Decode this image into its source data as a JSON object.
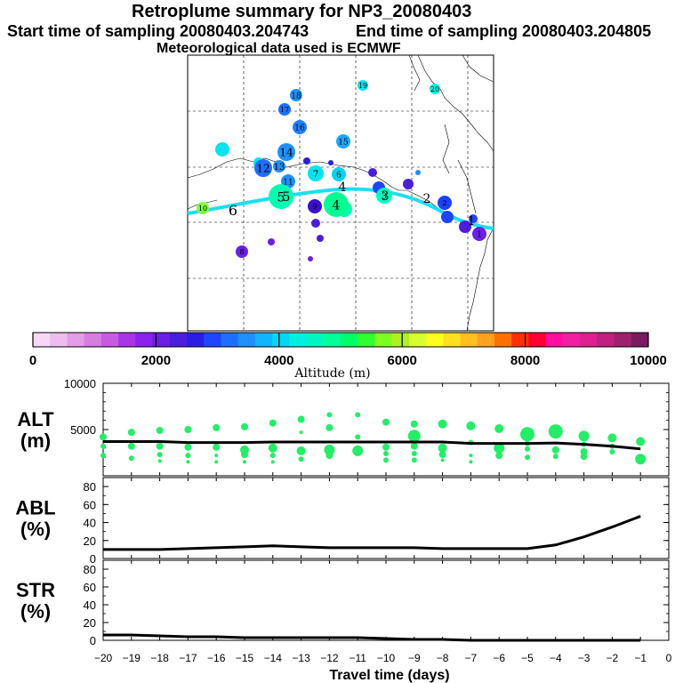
{
  "titles": {
    "main": "Retroplume summary for NP3_20080403",
    "start": "Start time of sampling 20080403.204743",
    "end": "End time of sampling 20080403.204805",
    "met": "Meteorological data used is ECMWF"
  },
  "map": {
    "description_labels": [
      "1",
      "2",
      "3",
      "4",
      "5",
      "6",
      "7",
      "8",
      "9",
      "10",
      "11",
      "12",
      "13",
      "14",
      "15",
      "16",
      "17",
      "18",
      "19",
      "20"
    ],
    "clusters": [
      {
        "label": "18",
        "color": "#1e90ff"
      },
      {
        "label": "19",
        "color": "#00e5ee"
      },
      {
        "label": "20",
        "color": "#00f5e0"
      },
      {
        "label": "17",
        "color": "#1e6fff"
      },
      {
        "label": "16",
        "color": "#1e7fff"
      },
      {
        "label": "15",
        "color": "#1aa8ff"
      },
      {
        "label": "14",
        "color": "#1e90ff"
      },
      {
        "label": "12",
        "color": "#1e6fff"
      },
      {
        "label": "13",
        "color": "#1e90ff"
      },
      {
        "label": "11",
        "color": "#1e90ff"
      },
      {
        "label": "7",
        "color": "#00e5ee"
      },
      {
        "label": "6",
        "color": "#00d5ee"
      },
      {
        "label": "5",
        "color": "#00ffb0"
      },
      {
        "label": "4",
        "color": "#00ff90"
      },
      {
        "label": "3",
        "color": "#00ffc0"
      },
      {
        "label": "2",
        "color": "#1e40ff"
      },
      {
        "label": "1",
        "color": "#6a20e8"
      },
      {
        "label": "9",
        "color": "#3a10d0"
      },
      {
        "label": "8",
        "color": "#6a20e8"
      },
      {
        "label": "10",
        "color": "#80ff40"
      }
    ],
    "track_labels": [
      "6",
      "5",
      "4",
      "3",
      "2",
      "1"
    ]
  },
  "colorbar": {
    "ticks": [
      "0",
      "2000",
      "4000",
      "6000",
      "8000",
      "10000"
    ],
    "label": "Altitude (m)",
    "colors": [
      "#f6d8f6",
      "#eebcee",
      "#e39ce6",
      "#d67de0",
      "#c75be0",
      "#a836e6",
      "#8a22f0",
      "#6a1ee8",
      "#4a1edd",
      "#2a1ee6",
      "#1e46ff",
      "#1e6fff",
      "#1e90ff",
      "#10b4ff",
      "#00d8f0",
      "#00f0e0",
      "#00f5c0",
      "#00ff99",
      "#00ff66",
      "#30ff30",
      "#7cff20",
      "#b0f020",
      "#d8ff30",
      "#ffff20",
      "#ffe020",
      "#ffc020",
      "#ffa020",
      "#ff7000",
      "#ff3000",
      "#ff0030",
      "#ff10a0",
      "#f020a0",
      "#e02090",
      "#c02080",
      "#a02070",
      "#7a1a60"
    ]
  },
  "chart_data": [
    {
      "type": "scatter",
      "title": "ALT",
      "ylabel": "ALT (m)",
      "ylabel_line1": "ALT",
      "ylabel_line2": "(m)",
      "xlim": [
        -20,
        0
      ],
      "ylim": [
        0,
        10000
      ],
      "yticks": [
        "5000",
        "10000"
      ],
      "mean_line": {
        "x": [
          -20,
          -19,
          -18,
          -17,
          -16,
          -15,
          -14,
          -13,
          -12,
          -11,
          -10,
          -9,
          -8,
          -7,
          -6,
          -5,
          -4,
          -3,
          -2,
          -1
        ],
        "y": [
          3700,
          3700,
          3700,
          3600,
          3600,
          3600,
          3650,
          3650,
          3650,
          3650,
          3650,
          3650,
          3650,
          3500,
          3500,
          3500,
          3550,
          3400,
          3200,
          2900
        ]
      },
      "points": [
        {
          "x": -20,
          "y": 4200,
          "s": 4
        },
        {
          "x": -20,
          "y": 3200,
          "s": 3
        },
        {
          "x": -20,
          "y": 2200,
          "s": 3
        },
        {
          "x": -19,
          "y": 4700,
          "s": 4
        },
        {
          "x": -19,
          "y": 3200,
          "s": 4
        },
        {
          "x": -19,
          "y": 1900,
          "s": 3
        },
        {
          "x": -18,
          "y": 4900,
          "s": 4
        },
        {
          "x": -18,
          "y": 3200,
          "s": 4
        },
        {
          "x": -18,
          "y": 2300,
          "s": 3
        },
        {
          "x": -18,
          "y": 1600,
          "s": 2
        },
        {
          "x": -17,
          "y": 5000,
          "s": 4
        },
        {
          "x": -17,
          "y": 3100,
          "s": 4
        },
        {
          "x": -17,
          "y": 2200,
          "s": 3
        },
        {
          "x": -17,
          "y": 1500,
          "s": 2
        },
        {
          "x": -16,
          "y": 5200,
          "s": 4
        },
        {
          "x": -16,
          "y": 3100,
          "s": 4
        },
        {
          "x": -16,
          "y": 2200,
          "s": 2
        },
        {
          "x": -16,
          "y": 1500,
          "s": 2
        },
        {
          "x": -15,
          "y": 5300,
          "s": 4
        },
        {
          "x": -15,
          "y": 2800,
          "s": 5
        },
        {
          "x": -15,
          "y": 2300,
          "s": 4
        },
        {
          "x": -15,
          "y": 1500,
          "s": 2
        },
        {
          "x": -14,
          "y": 5700,
          "s": 4
        },
        {
          "x": -14,
          "y": 3000,
          "s": 5
        },
        {
          "x": -14,
          "y": 2200,
          "s": 3
        },
        {
          "x": -14,
          "y": 1500,
          "s": 2
        },
        {
          "x": -13,
          "y": 6100,
          "s": 4
        },
        {
          "x": -13,
          "y": 4700,
          "s": 2
        },
        {
          "x": -13,
          "y": 2700,
          "s": 5
        },
        {
          "x": -13,
          "y": 1800,
          "s": 3
        },
        {
          "x": -12,
          "y": 6600,
          "s": 3
        },
        {
          "x": -12,
          "y": 5200,
          "s": 4
        },
        {
          "x": -12,
          "y": 2800,
          "s": 6
        },
        {
          "x": -12,
          "y": 2200,
          "s": 4
        },
        {
          "x": -11,
          "y": 6600,
          "s": 3
        },
        {
          "x": -11,
          "y": 4200,
          "s": 3
        },
        {
          "x": -11,
          "y": 2700,
          "s": 6
        },
        {
          "x": -10,
          "y": 5800,
          "s": 4
        },
        {
          "x": -10,
          "y": 3100,
          "s": 4
        },
        {
          "x": -10,
          "y": 2400,
          "s": 3
        },
        {
          "x": -10,
          "y": 1700,
          "s": 3
        },
        {
          "x": -9,
          "y": 5600,
          "s": 4
        },
        {
          "x": -9,
          "y": 4300,
          "s": 7
        },
        {
          "x": -9,
          "y": 3200,
          "s": 4
        },
        {
          "x": -9,
          "y": 2400,
          "s": 3
        },
        {
          "x": -9,
          "y": 1700,
          "s": 3
        },
        {
          "x": -8,
          "y": 5600,
          "s": 5
        },
        {
          "x": -8,
          "y": 3000,
          "s": 5
        },
        {
          "x": -8,
          "y": 2300,
          "s": 4
        },
        {
          "x": -8,
          "y": 1700,
          "s": 2
        },
        {
          "x": -7,
          "y": 5400,
          "s": 5
        },
        {
          "x": -7,
          "y": 3600,
          "s": 3
        },
        {
          "x": -7,
          "y": 2200,
          "s": 2
        },
        {
          "x": -7,
          "y": 1500,
          "s": 2
        },
        {
          "x": -6,
          "y": 5100,
          "s": 5
        },
        {
          "x": -6,
          "y": 3000,
          "s": 6
        },
        {
          "x": -6,
          "y": 2200,
          "s": 4
        },
        {
          "x": -5,
          "y": 4500,
          "s": 8
        },
        {
          "x": -5,
          "y": 3500,
          "s": 3
        },
        {
          "x": -5,
          "y": 2900,
          "s": 3
        },
        {
          "x": -5,
          "y": 2000,
          "s": 3
        },
        {
          "x": -4,
          "y": 4800,
          "s": 8
        },
        {
          "x": -4,
          "y": 2800,
          "s": 4
        },
        {
          "x": -4,
          "y": 2100,
          "s": 3
        },
        {
          "x": -3,
          "y": 4300,
          "s": 6
        },
        {
          "x": -3,
          "y": 3400,
          "s": 3
        },
        {
          "x": -3,
          "y": 2600,
          "s": 4
        },
        {
          "x": -3,
          "y": 2100,
          "s": 4
        },
        {
          "x": -2,
          "y": 4100,
          "s": 5
        },
        {
          "x": -2,
          "y": 3200,
          "s": 3
        },
        {
          "x": -2,
          "y": 2600,
          "s": 3
        },
        {
          "x": -1,
          "y": 3700,
          "s": 5
        },
        {
          "x": -1,
          "y": 1800,
          "s": 6
        }
      ]
    },
    {
      "type": "line",
      "title": "ABL",
      "ylabel": "ABL (%)",
      "ylabel_line1": "ABL",
      "ylabel_line2": "(%)",
      "xlim": [
        -20,
        0
      ],
      "ylim": [
        0,
        90
      ],
      "yticks": [
        "0",
        "20",
        "40",
        "60",
        "80"
      ],
      "x": [
        -20,
        -19,
        -18,
        -17,
        -16,
        -15,
        -14,
        -13,
        -12,
        -11,
        -10,
        -9,
        -8,
        -7,
        -6,
        -5,
        -4,
        -3,
        -2,
        -1
      ],
      "values": [
        10,
        10,
        10,
        11,
        12,
        13,
        14,
        13,
        12,
        12,
        12,
        12,
        11,
        11,
        11,
        11,
        15,
        24,
        35,
        47
      ]
    },
    {
      "type": "line",
      "title": "STR",
      "ylabel": "STR (%)",
      "ylabel_line1": "STR",
      "ylabel_line2": "(%)",
      "xlim": [
        -20,
        0
      ],
      "ylim": [
        0,
        90
      ],
      "yticks": [
        "0",
        "20",
        "40",
        "60",
        "80"
      ],
      "x": [
        -20,
        -19,
        -18,
        -17,
        -16,
        -15,
        -14,
        -13,
        -12,
        -11,
        -10,
        -9,
        -8,
        -7,
        -6,
        -5,
        -4,
        -3,
        -2,
        -1
      ],
      "values": [
        6,
        6,
        5,
        4,
        4,
        3,
        3,
        3,
        3,
        3,
        2,
        1,
        1,
        0,
        0,
        0,
        0,
        0,
        0,
        0
      ],
      "xlabel": "Travel time (days)",
      "xticks": [
        "−20",
        "−19",
        "−18",
        "−17",
        "−16",
        "−15",
        "−14",
        "−13",
        "−12",
        "−11",
        "−10",
        "−9",
        "−8",
        "−7",
        "−6",
        "−5",
        "−4",
        "−3",
        "−2",
        "−1",
        "0"
      ]
    }
  ]
}
